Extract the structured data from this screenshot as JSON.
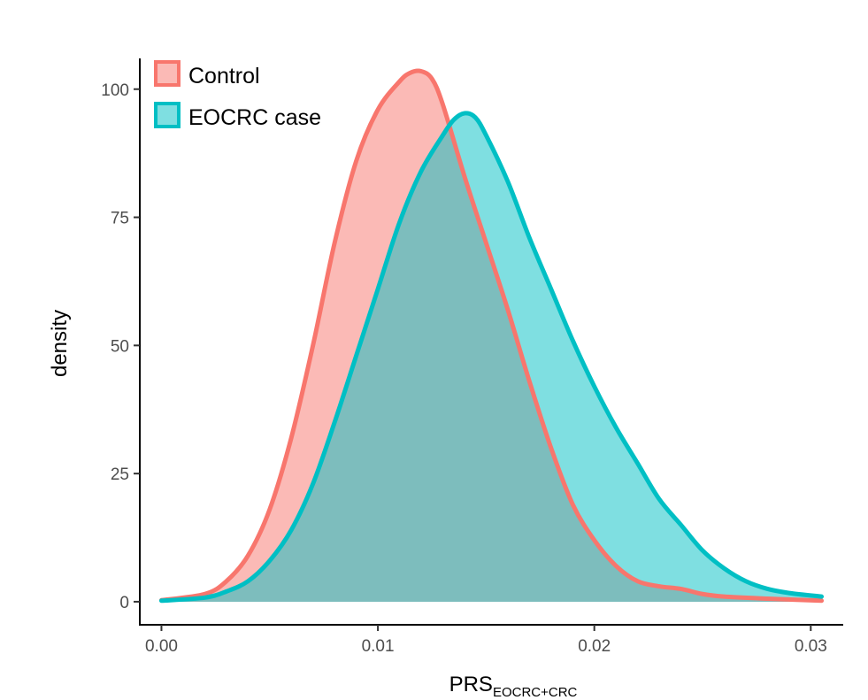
{
  "chart_data": {
    "type": "area",
    "xlabel": "PRS",
    "xlabel_subscript": "EOCRC+CRC",
    "ylabel": "density",
    "xlim": [
      -0.001,
      0.0315
    ],
    "ylim": [
      -4.5,
      106
    ],
    "x_ticks": [
      0.0,
      0.01,
      0.02,
      0.03
    ],
    "x_tick_labels": [
      "0.00",
      "0.01",
      "0.02",
      "0.03"
    ],
    "y_ticks": [
      0,
      25,
      50,
      75,
      100
    ],
    "y_tick_labels": [
      "0",
      "25",
      "50",
      "75",
      "100"
    ],
    "grid": false,
    "legend_position": "top-left",
    "series": [
      {
        "name": "Control",
        "color": "#F8766D",
        "fill": "#F8766D",
        "x": [
          0.0,
          0.002,
          0.003,
          0.004,
          0.005,
          0.006,
          0.007,
          0.008,
          0.009,
          0.01,
          0.011,
          0.0115,
          0.012,
          0.0125,
          0.013,
          0.014,
          0.015,
          0.016,
          0.017,
          0.018,
          0.019,
          0.02,
          0.021,
          0.022,
          0.023,
          0.024,
          0.025,
          0.026,
          0.028,
          0.0305
        ],
        "values": [
          0.3,
          1.5,
          4,
          9,
          18,
          32,
          50,
          70,
          86,
          96,
          101.5,
          103.2,
          103.5,
          102,
          97,
          83,
          70,
          57,
          43,
          30,
          19,
          12,
          7,
          4,
          3,
          2.5,
          1.5,
          1,
          0.6,
          0.2
        ]
      },
      {
        "name": "EOCRC case",
        "color": "#00BFC4",
        "fill": "#00BFC4",
        "x": [
          0.0,
          0.002,
          0.003,
          0.004,
          0.005,
          0.006,
          0.007,
          0.008,
          0.009,
          0.01,
          0.011,
          0.012,
          0.013,
          0.0135,
          0.014,
          0.0145,
          0.015,
          0.016,
          0.017,
          0.018,
          0.019,
          0.02,
          0.021,
          0.022,
          0.023,
          0.024,
          0.025,
          0.026,
          0.027,
          0.028,
          0.029,
          0.0305
        ],
        "values": [
          0.2,
          0.8,
          2,
          4,
          8,
          14,
          23,
          35,
          48,
          61,
          74,
          84,
          91,
          94,
          95.3,
          94.5,
          91,
          82,
          71,
          61,
          51,
          42,
          34,
          27,
          20,
          15,
          10,
          6.5,
          4,
          2.5,
          1.7,
          1
        ]
      }
    ]
  }
}
